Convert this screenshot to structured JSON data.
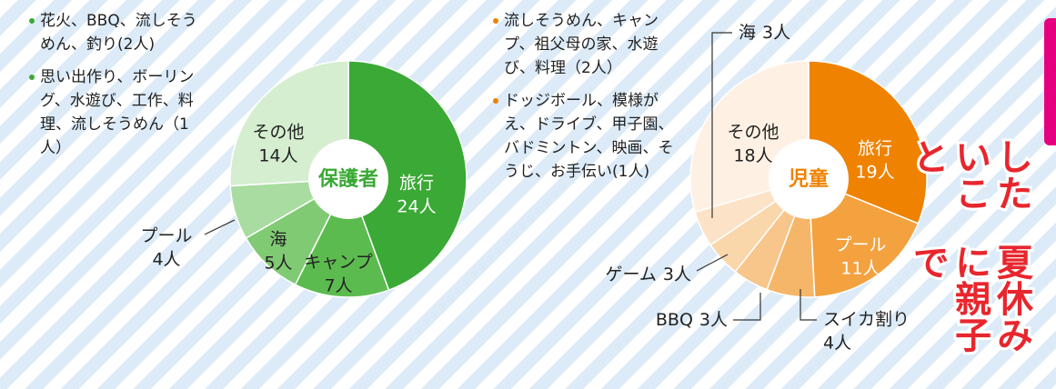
{
  "title": [
    "夏休みに親子で",
    "したいこと"
  ],
  "notes": {
    "parents": [
      "花火、BBQ、流しそうめん、釣り(2人)",
      "思い出作り、ボーリング、水遊び、工作、料理、流しそうめん（1人）"
    ],
    "children": [
      "流しそうめん、キャンプ、祖父母の家、水遊び、料理（2人）",
      "ドッジボール、模様がえ、ドライブ、甲子園、バドミントン、映画、そうじ、お手伝い(1人)"
    ]
  },
  "chart_data": [
    {
      "type": "pie",
      "title": "保護者",
      "categories": [
        "旅行",
        "キャンプ",
        "海",
        "プール",
        "その他"
      ],
      "values": [
        24,
        7,
        5,
        4,
        14
      ],
      "value_labels": [
        "24人",
        "7人",
        "5人",
        "4人",
        "14人"
      ],
      "colors": [
        "#3aa935",
        "#5cbb4f",
        "#80ca73",
        "#a9dca1",
        "#d4eecf"
      ]
    },
    {
      "type": "pie",
      "title": "児童",
      "categories": [
        "旅行",
        "プール",
        "スイカ割り",
        "BBQ",
        "ゲーム",
        "海",
        "その他"
      ],
      "values": [
        19,
        11,
        4,
        3,
        3,
        3,
        18
      ],
      "value_labels": [
        "19人",
        "11人",
        "4人",
        "3人",
        "3人",
        "3人",
        "18人"
      ],
      "colors": [
        "#ef8200",
        "#f3a23f",
        "#f6b66a",
        "#f8c68b",
        "#fad6ab",
        "#fce3c7",
        "#fef1e4"
      ]
    }
  ]
}
